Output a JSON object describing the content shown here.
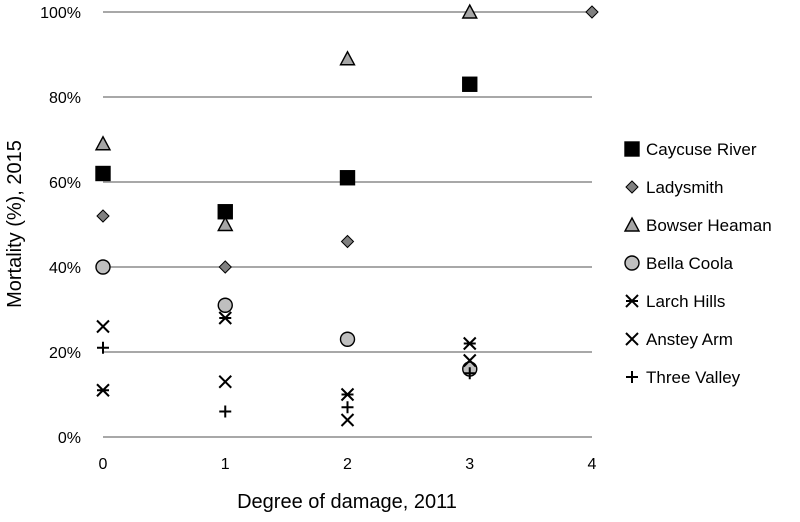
{
  "chart_data": {
    "type": "scatter",
    "title": "",
    "xlabel": "Degree of damage, 2011",
    "ylabel": "Mortality (%), 2015",
    "xlim": [
      0,
      4
    ],
    "ylim": [
      0,
      100
    ],
    "x_ticks": [
      0,
      1,
      2,
      3,
      4
    ],
    "y_ticks": [
      0,
      20,
      40,
      60,
      80,
      100
    ],
    "y_tick_format": "percent",
    "grid": "horizontal",
    "legend_position": "right",
    "series": [
      {
        "name": "Caycuse River",
        "marker": "square",
        "fill": "#000000",
        "points": [
          [
            0,
            62
          ],
          [
            1,
            53
          ],
          [
            2,
            61
          ],
          [
            3,
            83
          ]
        ]
      },
      {
        "name": "Ladysmith",
        "marker": "diamond",
        "fill": "#808080",
        "points": [
          [
            0,
            52
          ],
          [
            1,
            40
          ],
          [
            2,
            46
          ],
          [
            4,
            100
          ]
        ]
      },
      {
        "name": "Bowser Heaman",
        "marker": "triangle",
        "fill": "#a6a6a6",
        "points": [
          [
            0,
            69
          ],
          [
            1,
            50
          ],
          [
            2,
            89
          ],
          [
            3,
            100
          ]
        ]
      },
      {
        "name": "Bella Coola",
        "marker": "circle",
        "fill": "#bfbfbf",
        "points": [
          [
            0,
            40
          ],
          [
            1,
            31
          ],
          [
            2,
            23
          ],
          [
            3,
            16
          ]
        ]
      },
      {
        "name": "Larch Hills",
        "marker": "asterisk",
        "fill": "#000000",
        "points": [
          [
            0,
            11
          ],
          [
            1,
            28
          ],
          [
            2,
            10
          ],
          [
            3,
            22
          ]
        ]
      },
      {
        "name": "Anstey Arm",
        "marker": "x",
        "fill": "#000000",
        "points": [
          [
            0,
            26
          ],
          [
            1,
            13
          ],
          [
            2,
            4
          ],
          [
            3,
            18
          ]
        ]
      },
      {
        "name": "Three Valley",
        "marker": "plus",
        "fill": "#000000",
        "points": [
          [
            0,
            21
          ],
          [
            1,
            6
          ],
          [
            2,
            7
          ],
          [
            3,
            15
          ]
        ]
      }
    ]
  }
}
